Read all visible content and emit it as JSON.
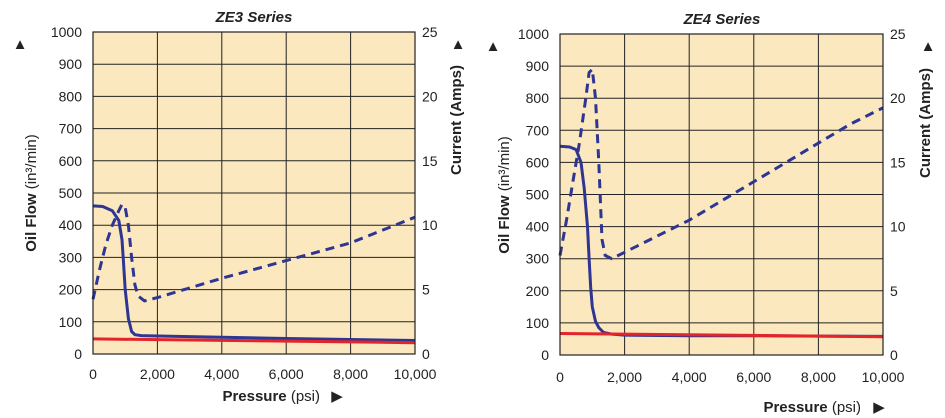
{
  "colors": {
    "plot_background": "#fbe8bf",
    "grid": "#222222",
    "oil_flow_line": "#2e3592",
    "current_line": "#e4242b"
  },
  "chart_data": [
    {
      "type": "line",
      "title": "ZE3 Series",
      "xlabel": {
        "bold": "Pressure",
        "rest": "(psi)",
        "arrow": "▶"
      },
      "ylabel_left": {
        "bold": "Oil Flow",
        "rest": "(in³/min)",
        "arrow": "▲"
      },
      "ylabel_right": {
        "text": "Current (Amps)",
        "arrow": "▲"
      },
      "xlim": [
        0,
        10000
      ],
      "ylim_left": [
        0,
        1000
      ],
      "ylim_right": [
        0,
        25
      ],
      "xticks": [
        0,
        2000,
        4000,
        6000,
        8000,
        10000
      ],
      "xtick_labels": [
        "0",
        "2,000",
        "4,000",
        "6,000",
        "8,000",
        "10,000"
      ],
      "yticks_left": [
        0,
        100,
        200,
        300,
        400,
        500,
        600,
        700,
        800,
        900,
        1000
      ],
      "ytick_labels_left": [
        "0",
        "100",
        "200",
        "300",
        "400",
        "500",
        "600",
        "700",
        "800",
        "900",
        "1000"
      ],
      "yticks_right": [
        0,
        5,
        10,
        15,
        20,
        25
      ],
      "ytick_labels_right": [
        "0",
        "5",
        "10",
        "15",
        "20",
        "25"
      ],
      "grid": true,
      "series": [
        {
          "style": "solid",
          "axis": "left",
          "color": "#2e3592",
          "x": [
            0,
            300,
            600,
            800,
            900,
            950,
            1000,
            1100,
            1200,
            1300,
            1500,
            2000,
            4000,
            6000,
            8000,
            10000
          ],
          "y": [
            460,
            458,
            445,
            415,
            355,
            280,
            200,
            110,
            70,
            60,
            57,
            56,
            52,
            48,
            45,
            42
          ]
        },
        {
          "style": "dashed",
          "axis": "left",
          "color": "#2e3592",
          "x": [
            0,
            200,
            400,
            600,
            800,
            900,
            1000,
            1100,
            1200,
            1300,
            1400,
            1600,
            2000,
            4000,
            6000,
            8000,
            10000
          ],
          "y": [
            170,
            260,
            340,
            400,
            445,
            465,
            455,
            400,
            300,
            215,
            180,
            165,
            175,
            235,
            290,
            345,
            425
          ]
        },
        {
          "style": "solid",
          "axis": "left",
          "color": "#e4242b",
          "x": [
            0,
            10000
          ],
          "y": [
            47,
            35
          ]
        }
      ]
    },
    {
      "type": "line",
      "title": "ZE4 Series",
      "xlabel": {
        "bold": "Pressure",
        "rest": "(psi)",
        "arrow": "▶"
      },
      "ylabel_left": {
        "bold": "Oil Flow",
        "rest": "(in³/min)",
        "arrow": "▲"
      },
      "ylabel_right": {
        "text": "Current (Amps)",
        "arrow": "▲"
      },
      "xlim": [
        0,
        10000
      ],
      "ylim_left": [
        0,
        1000
      ],
      "ylim_right": [
        0,
        25
      ],
      "xticks": [
        0,
        2000,
        4000,
        6000,
        8000,
        10000
      ],
      "xtick_labels": [
        "0",
        "2,000",
        "4,000",
        "6,000",
        "8,000",
        "10,000"
      ],
      "yticks_left": [
        0,
        100,
        200,
        300,
        400,
        500,
        600,
        700,
        800,
        900,
        1000
      ],
      "ytick_labels_left": [
        "0",
        "100",
        "200",
        "300",
        "400",
        "500",
        "600",
        "700",
        "800",
        "900",
        "1000"
      ],
      "yticks_right": [
        0,
        5,
        10,
        15,
        20,
        25
      ],
      "ytick_labels_right": [
        "0",
        "5",
        "10",
        "15",
        "20",
        "25"
      ],
      "grid": true,
      "series": [
        {
          "style": "solid",
          "axis": "left",
          "color": "#2e3592",
          "x": [
            0,
            300,
            500,
            650,
            750,
            850,
            900,
            950,
            1000,
            1100,
            1200,
            1350,
            1600,
            2000,
            4000,
            6000,
            8000,
            10000
          ],
          "y": [
            650,
            648,
            640,
            600,
            520,
            400,
            300,
            210,
            150,
            105,
            85,
            70,
            65,
            62,
            60,
            60,
            59,
            58
          ]
        },
        {
          "style": "dashed",
          "axis": "left",
          "color": "#2e3592",
          "x": [
            0,
            200,
            400,
            600,
            800,
            900,
            1000,
            1100,
            1200,
            1300,
            1400,
            1600,
            2000,
            3000,
            4000,
            5000,
            6000,
            7000,
            8000,
            9000,
            10000
          ],
          "y": [
            310,
            420,
            540,
            660,
            800,
            880,
            890,
            800,
            600,
            360,
            310,
            300,
            320,
            370,
            420,
            480,
            540,
            600,
            660,
            720,
            770
          ]
        },
        {
          "style": "solid",
          "axis": "left",
          "color": "#e4242b",
          "x": [
            0,
            10000
          ],
          "y": [
            67,
            57
          ]
        }
      ]
    }
  ]
}
